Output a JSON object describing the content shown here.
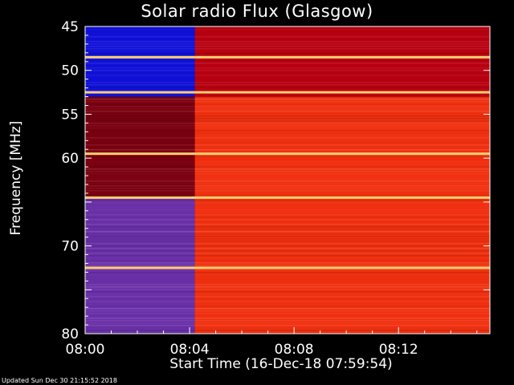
{
  "chart_data": {
    "type": "heatmap",
    "title": "Solar radio Flux (Glasgow)",
    "ylabel": "Frequency [MHz]",
    "xlabel": "Start Time (16-Dec-18 07:59:54)",
    "y_ticks": [
      "45",
      "50",
      "55",
      "60",
      "",
      "70",
      "",
      "80"
    ],
    "y_tick_values": [
      45,
      50,
      55,
      60,
      65,
      70,
      75,
      80
    ],
    "ylim": [
      45,
      80
    ],
    "x_ticks": [
      "08:00",
      "08:04",
      "08:08",
      "08:12"
    ],
    "x_tick_minutes": [
      0,
      4,
      8,
      12
    ],
    "xlim_minutes": [
      0,
      15.5
    ],
    "transition_minute": 4.2,
    "bright_bands_mhz": [
      48.5,
      52.5,
      59.5,
      64.5,
      72.5
    ],
    "colors": {
      "before_low": "#1010d8",
      "before_mid": "#7a0010",
      "before_high": "#6a30a8",
      "after_low": "#b80010",
      "after_mid": "#f03010",
      "after_high": "#e83a12",
      "band": "#ffd070"
    }
  },
  "footer": "Updated Sun Dec 30 21:15:52 2018"
}
